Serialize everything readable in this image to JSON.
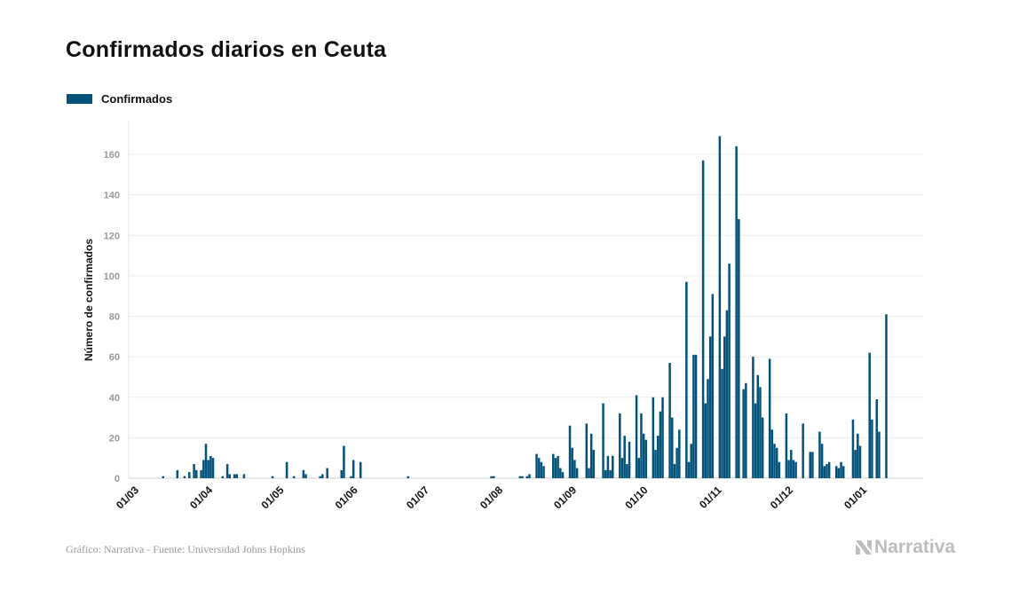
{
  "chart_data": {
    "type": "bar",
    "title": "Confirmados diarios en Ceuta",
    "ylabel": "Número de confirmados",
    "xlabel": "",
    "ylim": [
      0,
      177
    ],
    "yticks": [
      0,
      20,
      40,
      60,
      80,
      100,
      120,
      140,
      160
    ],
    "xticks": [
      "01/03",
      "01/04",
      "01/05",
      "01/06",
      "01/07",
      "01/08",
      "01/09",
      "01/10",
      "01/11",
      "01/12",
      "01/01"
    ],
    "grid": true,
    "legend_position": "top-left",
    "series": [
      {
        "name": "Confirmados",
        "color": "#02527a",
        "points": [
          [
            "11/03",
            1
          ],
          [
            "17/03",
            4
          ],
          [
            "20/03",
            1
          ],
          [
            "22/03",
            3
          ],
          [
            "24/03",
            7
          ],
          [
            "25/03",
            4
          ],
          [
            "27/03",
            4
          ],
          [
            "28/03",
            9
          ],
          [
            "29/03",
            17
          ],
          [
            "30/03",
            9
          ],
          [
            "31/03",
            11
          ],
          [
            "01/04",
            10
          ],
          [
            "05/04",
            1
          ],
          [
            "07/04",
            7
          ],
          [
            "08/04",
            2
          ],
          [
            "10/04",
            2
          ],
          [
            "11/04",
            2
          ],
          [
            "14/04",
            2
          ],
          [
            "26/04",
            1
          ],
          [
            "02/05",
            8
          ],
          [
            "05/05",
            1
          ],
          [
            "09/05",
            4
          ],
          [
            "10/05",
            2
          ],
          [
            "16/05",
            1
          ],
          [
            "17/05",
            2
          ],
          [
            "19/05",
            5
          ],
          [
            "25/05",
            4
          ],
          [
            "26/05",
            16
          ],
          [
            "29/05",
            1
          ],
          [
            "30/05",
            9
          ],
          [
            "02/06",
            8
          ],
          [
            "22/06",
            1
          ],
          [
            "27/07",
            1
          ],
          [
            "28/07",
            1
          ],
          [
            "08/08",
            1
          ],
          [
            "09/08",
            1
          ],
          [
            "11/08",
            1
          ],
          [
            "12/08",
            2
          ],
          [
            "15/08",
            12
          ],
          [
            "16/08",
            10
          ],
          [
            "17/08",
            8
          ],
          [
            "18/08",
            6
          ],
          [
            "22/08",
            12
          ],
          [
            "23/08",
            10
          ],
          [
            "24/08",
            11
          ],
          [
            "25/08",
            5
          ],
          [
            "26/08",
            3
          ],
          [
            "29/08",
            26
          ],
          [
            "30/08",
            15
          ],
          [
            "31/08",
            9
          ],
          [
            "01/09",
            5
          ],
          [
            "05/09",
            27
          ],
          [
            "06/09",
            5
          ],
          [
            "07/09",
            22
          ],
          [
            "08/09",
            14
          ],
          [
            "12/09",
            37
          ],
          [
            "13/09",
            4
          ],
          [
            "14/09",
            11
          ],
          [
            "15/09",
            4
          ],
          [
            "16/09",
            11
          ],
          [
            "19/09",
            32
          ],
          [
            "20/09",
            10
          ],
          [
            "21/09",
            21
          ],
          [
            "22/09",
            7
          ],
          [
            "23/09",
            18
          ],
          [
            "26/09",
            41
          ],
          [
            "27/09",
            10
          ],
          [
            "28/09",
            32
          ],
          [
            "29/09",
            22
          ],
          [
            "30/09",
            19
          ],
          [
            "03/10",
            40
          ],
          [
            "04/10",
            14
          ],
          [
            "05/10",
            21
          ],
          [
            "06/10",
            33
          ],
          [
            "07/10",
            40
          ],
          [
            "10/10",
            57
          ],
          [
            "11/10",
            30
          ],
          [
            "12/10",
            7
          ],
          [
            "13/10",
            15
          ],
          [
            "14/10",
            24
          ],
          [
            "17/10",
            97
          ],
          [
            "18/10",
            8
          ],
          [
            "19/10",
            17
          ],
          [
            "20/10",
            61
          ],
          [
            "21/10",
            61
          ],
          [
            "24/10",
            157
          ],
          [
            "25/10",
            37
          ],
          [
            "26/10",
            49
          ],
          [
            "27/10",
            70
          ],
          [
            "28/10",
            91
          ],
          [
            "31/10",
            169
          ],
          [
            "01/11",
            54
          ],
          [
            "02/11",
            70
          ],
          [
            "03/11",
            83
          ],
          [
            "04/11",
            106
          ],
          [
            "07/11",
            164
          ],
          [
            "08/11",
            128
          ],
          [
            "10/11",
            44
          ],
          [
            "11/11",
            47
          ],
          [
            "14/11",
            60
          ],
          [
            "15/11",
            37
          ],
          [
            "16/11",
            51
          ],
          [
            "17/11",
            45
          ],
          [
            "18/11",
            30
          ],
          [
            "21/11",
            59
          ],
          [
            "22/11",
            24
          ],
          [
            "23/11",
            17
          ],
          [
            "24/11",
            15
          ],
          [
            "25/11",
            8
          ],
          [
            "28/11",
            32
          ],
          [
            "29/11",
            9
          ],
          [
            "30/11",
            14
          ],
          [
            "01/12",
            9
          ],
          [
            "02/12",
            8
          ],
          [
            "05/12",
            27
          ],
          [
            "08/12",
            13
          ],
          [
            "09/12",
            13
          ],
          [
            "12/12",
            23
          ],
          [
            "13/12",
            17
          ],
          [
            "14/12",
            6
          ],
          [
            "15/12",
            7
          ],
          [
            "16/12",
            8
          ],
          [
            "19/12",
            6
          ],
          [
            "20/12",
            5
          ],
          [
            "21/12",
            8
          ],
          [
            "22/12",
            6
          ],
          [
            "26/12",
            29
          ],
          [
            "27/12",
            14
          ],
          [
            "28/12",
            22
          ],
          [
            "29/12",
            16
          ],
          [
            "02/01",
            62
          ],
          [
            "03/01",
            29
          ],
          [
            "05/01",
            39
          ],
          [
            "06/01",
            23
          ],
          [
            "09/01",
            81
          ]
        ]
      }
    ]
  },
  "footer": {
    "credit": "Gráfico: Narrativa - Fuente: Universidad Johns Hopkins",
    "logo_text": "Narrativa"
  }
}
